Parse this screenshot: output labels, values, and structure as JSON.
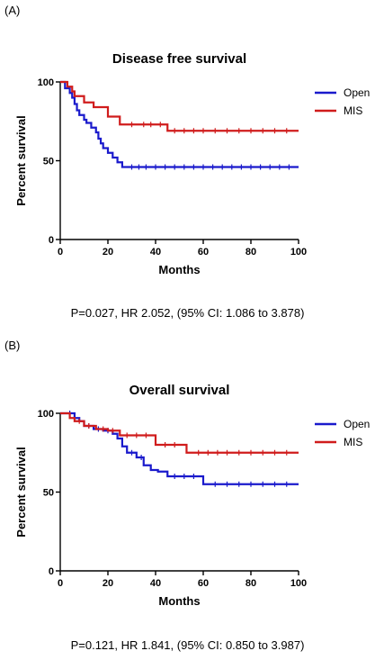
{
  "panels": [
    {
      "label": "(A)",
      "stats": "P=0.027, HR 2.052, (95% CI: 1.086 to 3.878)"
    },
    {
      "label": "(B)",
      "stats": "P=0.121, HR 1.841, (95% CI: 0.850 to 3.987)"
    }
  ],
  "chart_data": [
    {
      "type": "line",
      "step": true,
      "title": "Disease free survival",
      "xlabel": "Months",
      "ylabel": "Percent survival",
      "xlim": [
        0,
        100
      ],
      "ylim": [
        0,
        100
      ],
      "xticks": [
        0,
        20,
        40,
        60,
        80,
        100
      ],
      "yticks": [
        0,
        50,
        100
      ],
      "legend": "top-right",
      "series": [
        {
          "name": "Open",
          "color": "#1a1acc",
          "x": [
            0,
            2,
            4,
            5,
            6,
            7,
            8,
            10,
            11,
            13,
            15,
            16,
            17,
            18,
            20,
            22,
            24,
            26,
            100
          ],
          "y": [
            100,
            96,
            93,
            90,
            86,
            82,
            79,
            76,
            74,
            71,
            68,
            64,
            61,
            58,
            55,
            52,
            49,
            46,
            46
          ],
          "censor_x": [
            30,
            33,
            36,
            40,
            44,
            48,
            52,
            56,
            60,
            64,
            68,
            72,
            76,
            80,
            84,
            88,
            92,
            96
          ]
        },
        {
          "name": "MIS",
          "color": "#d01c1c",
          "x": [
            0,
            3,
            5,
            6,
            10,
            14,
            20,
            25,
            45,
            100
          ],
          "y": [
            100,
            97,
            94,
            91,
            87,
            84,
            78,
            73,
            69,
            69
          ],
          "censor_x": [
            30,
            35,
            38,
            42,
            48,
            52,
            56,
            60,
            65,
            70,
            75,
            80,
            85,
            90,
            95
          ]
        }
      ]
    },
    {
      "type": "line",
      "step": true,
      "title": "Overall survival",
      "xlabel": "Months",
      "ylabel": "Percent survival",
      "xlim": [
        0,
        100
      ],
      "ylim": [
        0,
        100
      ],
      "xticks": [
        0,
        20,
        40,
        60,
        80,
        100
      ],
      "yticks": [
        0,
        50,
        100
      ],
      "legend": "top-right",
      "series": [
        {
          "name": "Open",
          "color": "#1a1acc",
          "x": [
            0,
            6,
            8,
            10,
            14,
            18,
            22,
            24,
            26,
            28,
            32,
            35,
            38,
            41,
            45,
            60,
            100
          ],
          "y": [
            100,
            97,
            95,
            92,
            90,
            89,
            87,
            84,
            79,
            75,
            72,
            67,
            64,
            63,
            60,
            55,
            55
          ],
          "censor_x": [
            4,
            12,
            16,
            20,
            30,
            34,
            48,
            52,
            56,
            65,
            70,
            75,
            80,
            85,
            90,
            95
          ]
        },
        {
          "name": "MIS",
          "color": "#d01c1c",
          "x": [
            0,
            4,
            6,
            10,
            15,
            20,
            25,
            40,
            53,
            100
          ],
          "y": [
            100,
            97,
            95,
            92,
            90,
            89,
            86,
            80,
            75,
            75
          ],
          "censor_x": [
            8,
            12,
            18,
            22,
            28,
            32,
            36,
            44,
            48,
            58,
            62,
            66,
            70,
            75,
            80,
            85,
            90,
            95
          ]
        }
      ]
    }
  ]
}
